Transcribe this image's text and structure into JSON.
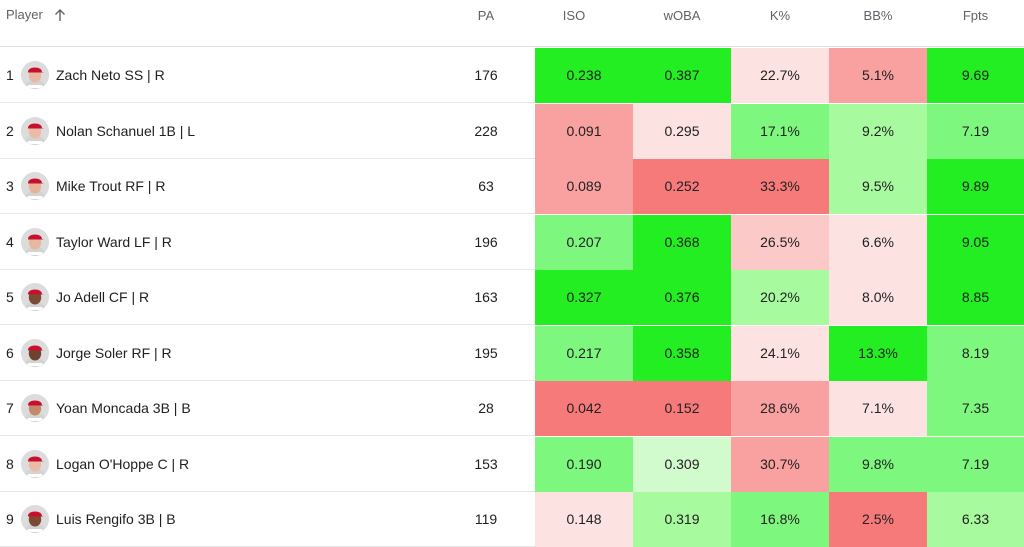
{
  "headers": {
    "player": "Player",
    "pa": "PA",
    "iso": "ISO",
    "woba": "wOBA",
    "k_pct": "K%",
    "bb_pct": "BB%",
    "fpts": "Fpts"
  },
  "sort": {
    "column": "player",
    "direction": "ascending",
    "icon": "arrow-up-icon"
  },
  "colors": {
    "strong_green": "#22ee22",
    "green": "#7ef77e",
    "light_green": "#a8fa9f",
    "pale_green": "#d2fbcd",
    "pale_red": "#fde2e2",
    "light_red": "#fcc9c9",
    "red": "#f9a0a0",
    "strong_red": "#f77a7a"
  },
  "rows": [
    {
      "rank": "1",
      "name": "Zach Neto SS | R",
      "pa": "176",
      "iso": "0.238",
      "woba": "0.387",
      "k_pct": "22.7%",
      "bb_pct": "5.1%",
      "fpts": "9.69",
      "skin": "#e8b8a0",
      "iso_c": "#22ee22",
      "woba_c": "#22ee22",
      "k_c": "#fde2e2",
      "bb_c": "#f9a0a0",
      "fpts_c": "#22ee22"
    },
    {
      "rank": "2",
      "name": "Nolan Schanuel 1B | L",
      "pa": "228",
      "iso": "0.091",
      "woba": "0.295",
      "k_pct": "17.1%",
      "bb_pct": "9.2%",
      "fpts": "7.19",
      "skin": "#e8bca6",
      "iso_c": "#f9a0a0",
      "woba_c": "#fde2e2",
      "k_c": "#7ef77e",
      "bb_c": "#a8fa9f",
      "fpts_c": "#7ef77e"
    },
    {
      "rank": "3",
      "name": "Mike Trout RF | R",
      "pa": "63",
      "iso": "0.089",
      "woba": "0.252",
      "k_pct": "33.3%",
      "bb_pct": "9.5%",
      "fpts": "9.89",
      "skin": "#e6b49a",
      "iso_c": "#f9a0a0",
      "woba_c": "#f77a7a",
      "k_c": "#f77a7a",
      "bb_c": "#a8fa9f",
      "fpts_c": "#22ee22"
    },
    {
      "rank": "4",
      "name": "Taylor Ward LF | R",
      "pa": "196",
      "iso": "0.207",
      "woba": "0.368",
      "k_pct": "26.5%",
      "bb_pct": "6.6%",
      "fpts": "9.05",
      "skin": "#e6b8a2",
      "iso_c": "#7ef77e",
      "woba_c": "#22ee22",
      "k_c": "#fcc9c9",
      "bb_c": "#fde2e2",
      "fpts_c": "#22ee22"
    },
    {
      "rank": "5",
      "name": "Jo Adell CF | R",
      "pa": "163",
      "iso": "0.327",
      "woba": "0.376",
      "k_pct": "20.2%",
      "bb_pct": "8.0%",
      "fpts": "8.85",
      "skin": "#7a4a32",
      "iso_c": "#22ee22",
      "woba_c": "#22ee22",
      "k_c": "#a8fa9f",
      "bb_c": "#fde2e2",
      "fpts_c": "#22ee22"
    },
    {
      "rank": "6",
      "name": "Jorge Soler RF | R",
      "pa": "195",
      "iso": "0.217",
      "woba": "0.358",
      "k_pct": "24.1%",
      "bb_pct": "13.3%",
      "fpts": "8.19",
      "skin": "#6e4230",
      "iso_c": "#7ef77e",
      "woba_c": "#22ee22",
      "k_c": "#fde2e2",
      "bb_c": "#22ee22",
      "fpts_c": "#7ef77e"
    },
    {
      "rank": "7",
      "name": "Yoan Moncada 3B | B",
      "pa": "28",
      "iso": "0.042",
      "woba": "0.152",
      "k_pct": "28.6%",
      "bb_pct": "7.1%",
      "fpts": "7.35",
      "skin": "#c28a6a",
      "iso_c": "#f77a7a",
      "woba_c": "#f77a7a",
      "k_c": "#f9a0a0",
      "bb_c": "#fde2e2",
      "fpts_c": "#7ef77e"
    },
    {
      "rank": "8",
      "name": "Logan O'Hoppe C | R",
      "pa": "153",
      "iso": "0.190",
      "woba": "0.309",
      "k_pct": "30.7%",
      "bb_pct": "9.8%",
      "fpts": "7.19",
      "skin": "#e8bca6",
      "iso_c": "#7ef77e",
      "woba_c": "#d2fbcd",
      "k_c": "#f9a0a0",
      "bb_c": "#7ef77e",
      "fpts_c": "#7ef77e"
    },
    {
      "rank": "9",
      "name": "Luis Rengifo 3B | B",
      "pa": "119",
      "iso": "0.148",
      "woba": "0.319",
      "k_pct": "16.8%",
      "bb_pct": "2.5%",
      "fpts": "6.33",
      "skin": "#7a4a32",
      "iso_c": "#fde2e2",
      "woba_c": "#a8fa9f",
      "k_c": "#7ef77e",
      "bb_c": "#f77a7a",
      "fpts_c": "#a8fa9f"
    }
  ]
}
